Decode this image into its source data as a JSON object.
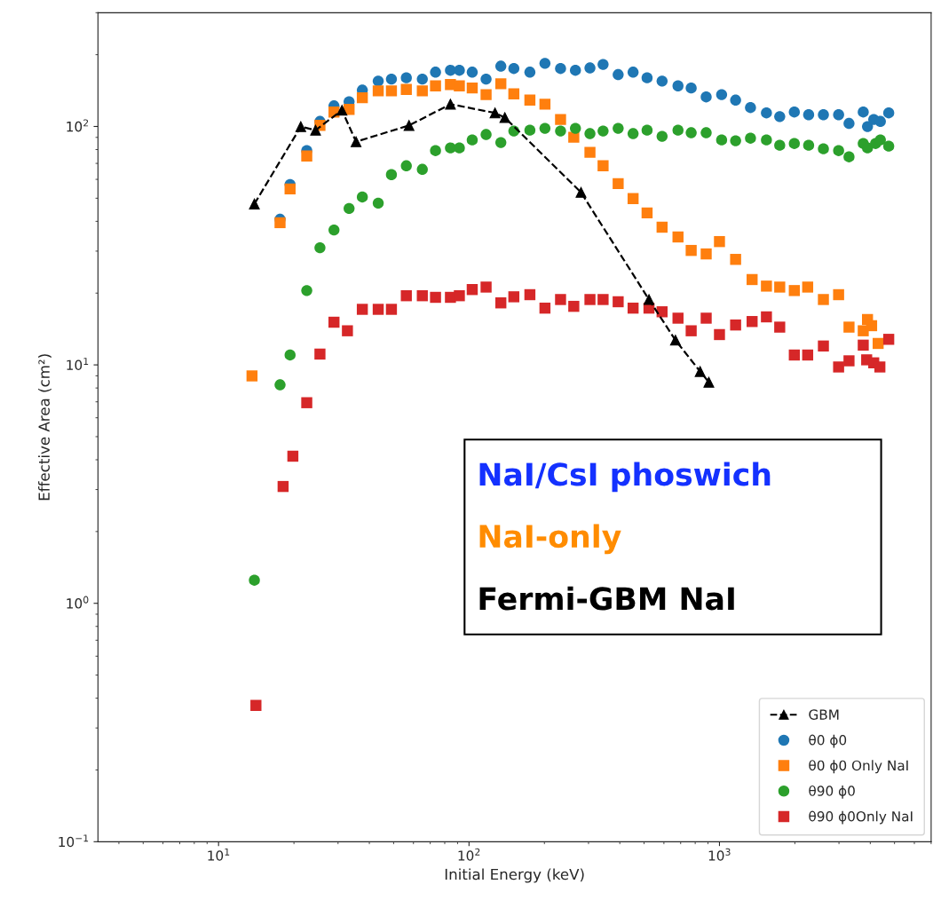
{
  "chart_data": {
    "type": "scatter",
    "xlabel": "Initial Energy (keV)",
    "ylabel": "Effective Area (cm²)",
    "log": "xy",
    "xlim": [
      3.3,
      7000
    ],
    "xticks": [
      {
        "value": 10,
        "label": "10$^{1}$"
      },
      {
        "value": 100,
        "label": "10$^{2}$"
      },
      {
        "value": 1000,
        "label": "10$^{3}$"
      }
    ],
    "ylim": [
      0.1,
      300
    ],
    "yticks": [
      {
        "value": 0.1,
        "label": "10$^{−1}$"
      },
      {
        "value": 1,
        "label": "10$^{0}$"
      },
      {
        "value": 10,
        "label": "10$^{1}$"
      },
      {
        "value": 100,
        "label": "10$^{2}$"
      }
    ],
    "grid": false,
    "legend": "bottom right",
    "annotations": [
      "NaI/CsI phoswich",
      "NaI-only",
      "Fermi-GBM NaI"
    ],
    "series": [
      {
        "name": "GBM",
        "type": "line",
        "marker": "triangle",
        "line_style": "dashed",
        "color": "#000000",
        "x": [
          13.9,
          21.3,
          24.4,
          31.1,
          35.4,
          57.6,
          84.3,
          127,
          139,
          280,
          523,
          667,
          837,
          907
        ],
        "values": [
          47.3,
          99.9,
          96.5,
          117,
          86.3,
          101,
          124,
          114,
          109,
          52.9,
          18.8,
          12.7,
          9.38,
          8.46
        ]
      },
      {
        "name": "θ0 ϕ0",
        "marker": "circle",
        "color": "#1f77b4",
        "x": [
          17.6,
          19.3,
          22.5,
          25.4,
          28.9,
          33.2,
          37.5,
          43.4,
          49,
          56.2,
          65.1,
          73.5,
          84.3,
          91.5,
          103,
          117,
          134,
          151,
          175,
          201,
          232,
          266,
          304,
          343,
          394,
          452,
          514,
          590,
          683,
          771,
          885,
          1020,
          1160,
          1330,
          1540,
          1740,
          1990,
          2270,
          2600,
          2990,
          3290,
          3750,
          3900,
          4130,
          4390,
          4740
        ],
        "values": [
          40.8,
          57.1,
          79.2,
          105,
          122,
          127,
          142,
          155,
          158,
          160,
          158,
          169,
          172,
          172,
          169,
          158,
          179,
          175,
          169,
          184,
          175,
          172,
          176,
          182,
          165,
          169,
          160,
          155,
          148,
          145,
          133,
          136,
          129,
          120,
          114,
          110,
          115,
          112,
          112,
          112,
          103,
          115,
          99.9,
          107,
          105,
          114
        ]
      },
      {
        "name": "θ0 ϕ0 Only NaI",
        "marker": "square",
        "color": "#ff7f0e",
        "x": [
          13.6,
          17.6,
          19.3,
          22.5,
          25.4,
          28.9,
          33.2,
          37.5,
          43.4,
          49,
          56.2,
          65.1,
          73.5,
          84.3,
          91.5,
          103,
          117,
          134,
          151,
          175,
          201,
          232,
          262,
          304,
          343,
          394,
          452,
          514,
          590,
          683,
          771,
          885,
          1000,
          1160,
          1350,
          1540,
          1740,
          1990,
          2250,
          2600,
          2990,
          3290,
          3750,
          3900,
          4050,
          4300
        ],
        "values": [
          8.99,
          39.5,
          54.7,
          75.2,
          101,
          115,
          118,
          132,
          141,
          141,
          143,
          141,
          148,
          150,
          148,
          145,
          136,
          151,
          137,
          129,
          124,
          107,
          90.1,
          77.9,
          68.4,
          57.6,
          49.8,
          43.4,
          37.8,
          34.4,
          30.2,
          29.2,
          32.9,
          27.7,
          22.8,
          21.4,
          21.2,
          20.5,
          21.2,
          18.8,
          19.7,
          14.4,
          13.9,
          15.5,
          14.6,
          12.3
        ]
      },
      {
        "name": "θ90 ϕ0",
        "marker": "circle",
        "color": "#2ca02c",
        "x": [
          13.9,
          17.6,
          19.3,
          22.5,
          25.4,
          28.9,
          33.2,
          37.5,
          43.4,
          49,
          56.2,
          65.1,
          73.5,
          84.3,
          91.5,
          103,
          117,
          134,
          151,
          175,
          201,
          232,
          266,
          304,
          343,
          394,
          452,
          514,
          590,
          683,
          771,
          885,
          1020,
          1160,
          1330,
          1540,
          1740,
          1990,
          2270,
          2600,
          2990,
          3290,
          3750,
          3900,
          4200,
          4390,
          4740
        ],
        "values": [
          1.25,
          8.25,
          11,
          20.5,
          31,
          36.8,
          45.3,
          50.6,
          47.7,
          62.8,
          68.4,
          66.1,
          79.2,
          81.3,
          81.3,
          87.8,
          92.5,
          85.6,
          95.7,
          96.5,
          98.2,
          95.7,
          98.2,
          93.3,
          95.7,
          98.2,
          93.3,
          96.5,
          90.9,
          96.5,
          94.1,
          94.1,
          87.8,
          87.1,
          89.3,
          87.8,
          83.4,
          84.8,
          83.4,
          80.6,
          79.2,
          74.6,
          84.8,
          81.3,
          84.8,
          87.8,
          82.7
        ]
      },
      {
        "name": "θ90 ϕ0Only NaI",
        "marker": "square",
        "color": "#d62728",
        "x": [
          14.1,
          18.1,
          19.8,
          22.5,
          25.4,
          28.9,
          32.7,
          37.5,
          43.4,
          49,
          56.2,
          65.1,
          73.5,
          84.3,
          91.5,
          103,
          117,
          134,
          151,
          175,
          201,
          232,
          262,
          304,
          343,
          394,
          452,
          523,
          590,
          683,
          771,
          885,
          1000,
          1160,
          1350,
          1540,
          1740,
          1990,
          2250,
          2600,
          2990,
          3290,
          3750,
          3870,
          4130,
          4370,
          4740
        ],
        "values": [
          0.373,
          3.09,
          4.14,
          6.94,
          11.1,
          15.1,
          13.9,
          17.1,
          17.1,
          17.1,
          19.5,
          19.5,
          19.2,
          19.2,
          19.5,
          20.7,
          21.2,
          18.2,
          19.3,
          19.7,
          17.3,
          18.8,
          17.6,
          18.8,
          18.8,
          18.4,
          17.3,
          17.3,
          16.7,
          15.7,
          13.9,
          15.7,
          13.4,
          14.7,
          15.2,
          15.9,
          14.4,
          11,
          11,
          12,
          9.8,
          10.4,
          12.1,
          10.5,
          10.2,
          9.8,
          12.8
        ]
      }
    ]
  }
}
